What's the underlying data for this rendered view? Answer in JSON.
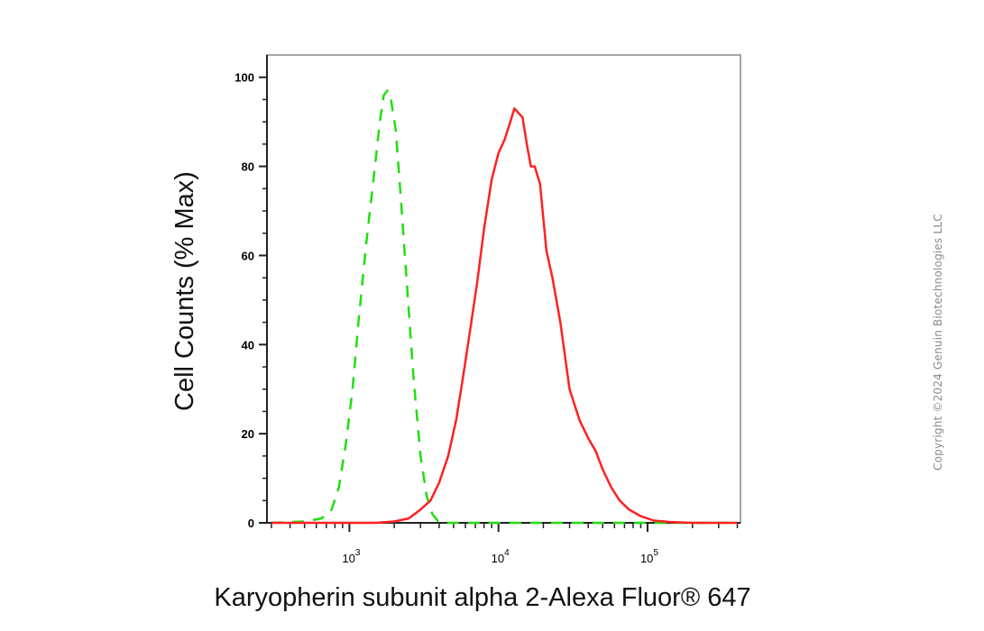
{
  "chart_data": {
    "type": "line",
    "xlabel": "Karyopherin subunit alpha 2-Alexa Fluor® 647",
    "ylabel": "Cell Counts (% Max)",
    "x_scale": "log",
    "xlim": [
      280,
      420000
    ],
    "ylim": [
      0,
      105
    ],
    "x_ticks": [
      1000,
      10000,
      100000
    ],
    "x_tick_labels": [
      {
        "base": "10",
        "exp": "3"
      },
      {
        "base": "10",
        "exp": "4"
      },
      {
        "base": "10",
        "exp": "5"
      }
    ],
    "y_ticks": [
      0,
      20,
      40,
      60,
      80,
      100
    ],
    "y_tick_labels": [
      "0",
      "20",
      "40",
      "60",
      "80",
      "100"
    ],
    "grid": false,
    "series": [
      {
        "style": "dashed",
        "color": "#22dd11",
        "x": [
          300,
          500,
          650,
          760,
          850,
          950,
          1050,
          1150,
          1300,
          1450,
          1600,
          1700,
          1800,
          1900,
          2050,
          2200,
          2450,
          2700,
          3000,
          3300,
          3600,
          3900,
          4300,
          5000,
          6000,
          20000,
          400000
        ],
        "y": [
          0,
          0.3,
          1,
          3,
          8,
          18,
          30,
          45,
          63,
          77,
          90,
          96,
          97,
          95,
          88,
          74,
          52,
          32,
          15,
          6,
          2,
          0.5,
          0,
          0,
          0,
          0,
          0
        ]
      },
      {
        "style": "solid",
        "color": "#ff2020",
        "x": [
          300,
          1500,
          2000,
          2500,
          3000,
          3500,
          4000,
          4600,
          5200,
          5800,
          6500,
          7200,
          8000,
          9000,
          10000,
          11000,
          12000,
          12800,
          13600,
          14500,
          15500,
          16500,
          17500,
          19000,
          21000,
          23000,
          26000,
          30000,
          35000,
          40000,
          45000,
          50000,
          57000,
          65000,
          75000,
          90000,
          110000,
          140000,
          200000,
          400000
        ],
        "y": [
          0,
          0,
          0.3,
          1,
          3,
          5,
          9,
          15,
          23,
          33,
          44,
          54,
          66,
          77,
          83,
          86,
          90,
          93,
          92,
          91,
          85,
          80,
          80,
          76,
          61,
          55,
          45,
          30,
          23,
          19,
          16,
          12,
          8,
          5,
          3,
          1.5,
          0.5,
          0.2,
          0,
          0
        ]
      }
    ]
  },
  "copyright": "Copyright ©2024 Genuin Biotechnologies LLC"
}
